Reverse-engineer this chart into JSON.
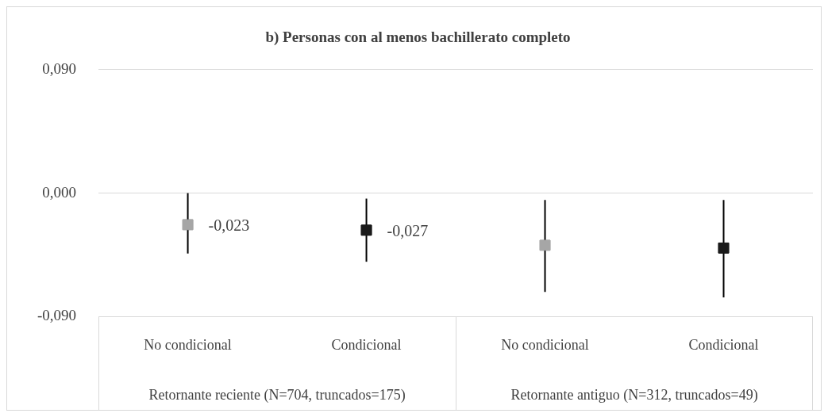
{
  "chart_data": {
    "type": "scatter",
    "title": "b) Personas con al menos bachillerato completo",
    "categories": [
      "No condicional",
      "Condicional",
      "No condicional",
      "Condicional"
    ],
    "values": [
      -0.023,
      -0.027,
      -0.038,
      -0.04
    ],
    "colors": [
      "#a6a6a6",
      "#1a1a1a",
      "#a6a6a6",
      "#1a1a1a"
    ],
    "errors": [
      [
        -0.044,
        0
      ],
      [
        -0.05,
        -0.004
      ],
      [
        -0.072,
        -0.005
      ],
      [
        -0.076,
        -0.005
      ]
    ],
    "value_labels": [
      "-0,023",
      "-0,027",
      null,
      null
    ],
    "ylim": [
      -0.09,
      0.09
    ],
    "yticks": [
      {
        "value": -0.09,
        "label": "-0,090"
      },
      {
        "value": 0,
        "label": "0,000"
      },
      {
        "value": 0.09,
        "label": "0,090"
      }
    ],
    "grid": "y",
    "legend": false,
    "marker": "square",
    "annotations": [
      "Retornante reciente (N=704, truncados=175)",
      "Retornante antiguo (N=312, truncados=49)"
    ]
  }
}
